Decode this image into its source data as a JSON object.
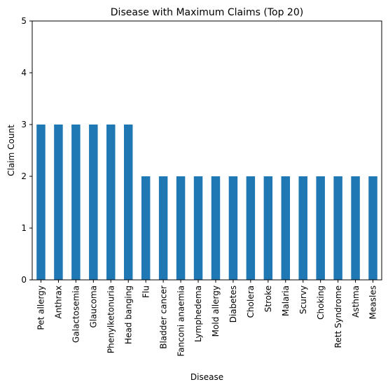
{
  "chart_data": {
    "type": "bar",
    "title": "Disease with Maximum Claims (Top 20)",
    "xlabel": "Disease",
    "ylabel": "Claim Count",
    "ylim": [
      0,
      5
    ],
    "yticks": [
      "0",
      "1",
      "2",
      "3",
      "4",
      "5"
    ],
    "grid": false,
    "legend": "none",
    "bar_color": "#1f77b4",
    "categories": [
      "Pet allergy",
      "Anthrax",
      "Galactosemia",
      "Glaucoma",
      "Phenylketonuria",
      "Head banging",
      "Flu",
      "Bladder cancer",
      "Fanconi anaemia",
      "Lymphedema",
      "Mold allergy",
      "Diabetes",
      "Cholera",
      "Stroke",
      "Malaria",
      "Scurvy",
      "Choking",
      "Rett Syndrome",
      "Asthma",
      "Measles"
    ],
    "values": [
      3,
      3,
      3,
      3,
      3,
      3,
      2,
      2,
      2,
      2,
      2,
      2,
      2,
      2,
      2,
      2,
      2,
      2,
      2,
      2
    ]
  }
}
